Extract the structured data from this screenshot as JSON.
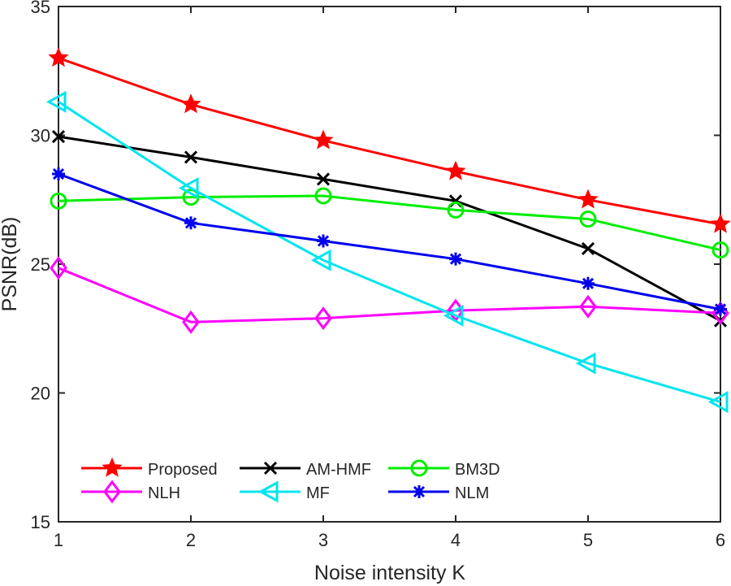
{
  "chart_data": {
    "type": "line",
    "title": "",
    "xlabel": "Noise intensity K",
    "ylabel": "PSNR(dB)",
    "x": [
      1,
      2,
      3,
      4,
      5,
      6
    ],
    "xlim": [
      1,
      6
    ],
    "ylim": [
      15,
      35
    ],
    "xticks": [
      1,
      2,
      3,
      4,
      5,
      6
    ],
    "yticks": [
      15,
      20,
      25,
      30,
      35
    ],
    "grid": false,
    "legend_position": "bottom-left",
    "legend_columns": 3,
    "series": [
      {
        "name": "Proposed",
        "color": "#ff0000",
        "marker": "star",
        "values": [
          33.0,
          31.2,
          29.8,
          28.6,
          27.5,
          26.55
        ]
      },
      {
        "name": "AM-HMF",
        "color": "#000000",
        "marker": "x",
        "values": [
          29.95,
          29.15,
          28.3,
          27.45,
          25.6,
          22.8
        ]
      },
      {
        "name": "BM3D",
        "color": "#00ee00",
        "marker": "circle",
        "values": [
          27.45,
          27.6,
          27.65,
          27.1,
          26.75,
          25.55
        ]
      },
      {
        "name": "NLH",
        "color": "#ff00ff",
        "marker": "diamond",
        "values": [
          24.85,
          22.75,
          22.9,
          23.2,
          23.35,
          23.1
        ]
      },
      {
        "name": "MF",
        "color": "#00e5ee",
        "marker": "triangle-left",
        "values": [
          31.3,
          27.95,
          25.15,
          23.0,
          21.15,
          19.65
        ]
      },
      {
        "name": "NLM",
        "color": "#0000ee",
        "marker": "asterisk",
        "values": [
          28.5,
          26.6,
          25.9,
          25.2,
          24.25,
          23.25
        ]
      }
    ]
  }
}
